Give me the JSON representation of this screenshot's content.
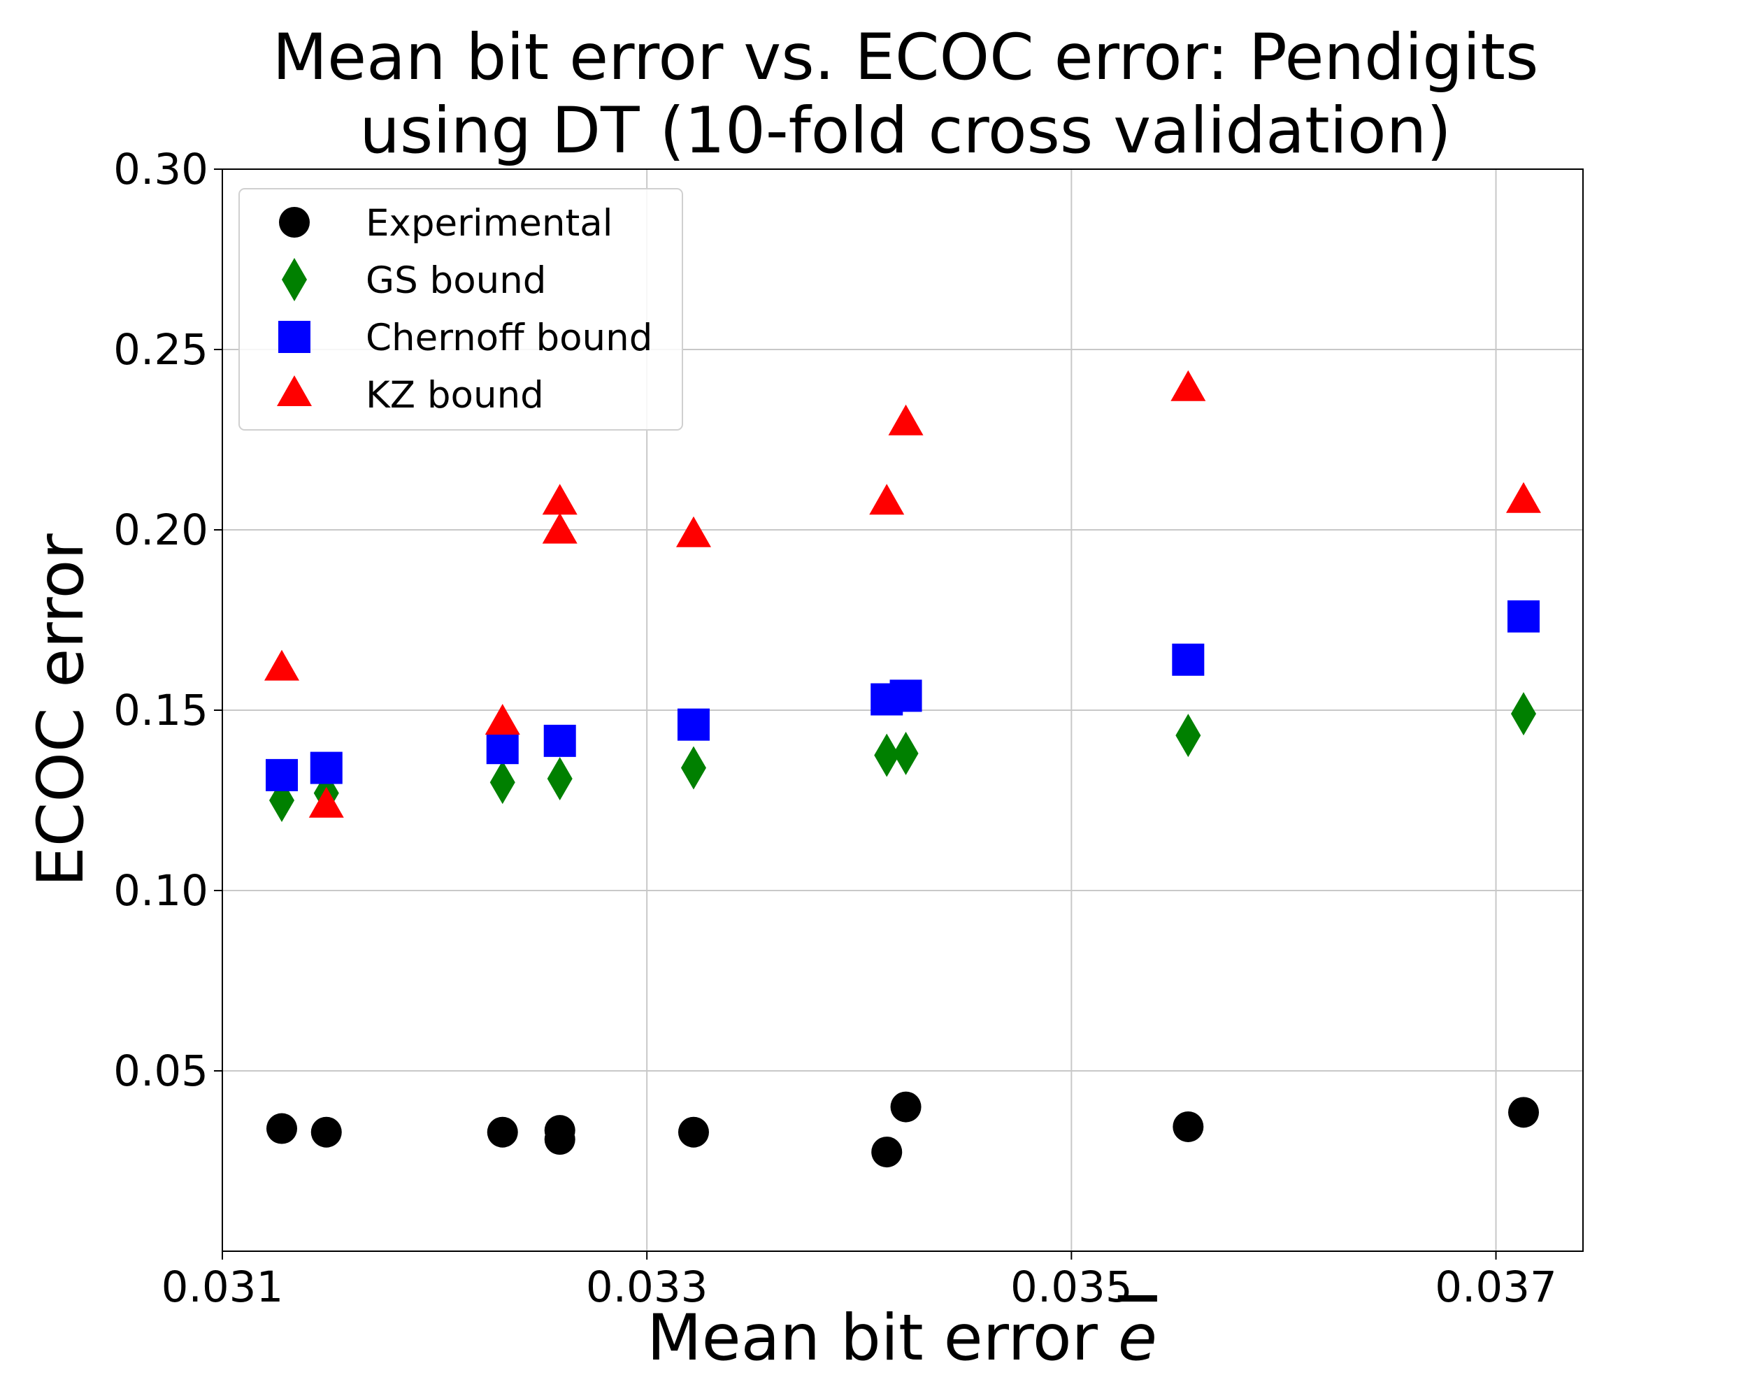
{
  "chart_data": {
    "type": "scatter",
    "title_lines": [
      "Mean bit error vs. ECOC error: Pendigits",
      "using DT (10-fold cross validation)"
    ],
    "xlabel": "Mean bit error ",
    "xlabel_symbol": "e",
    "ylabel": "ECOC error",
    "xlim": [
      0.031,
      0.03741
    ],
    "ylim": [
      0.0,
      0.3
    ],
    "x_ticks": [
      0.031,
      0.033,
      0.035,
      0.037
    ],
    "x_tick_labels": [
      "0.031",
      "0.033",
      "0.035",
      "0.037"
    ],
    "y_ticks": [
      0.05,
      0.1,
      0.15,
      0.2,
      0.25,
      0.3
    ],
    "y_tick_labels": [
      "0.05",
      "0.10",
      "0.15",
      "0.20",
      "0.25",
      "0.30"
    ],
    "grid": true,
    "legend_position": "top-left",
    "series": [
      {
        "name": "Experimental",
        "marker": "circle",
        "color": "#000000",
        "points": [
          [
            0.03128,
            0.034
          ],
          [
            0.03149,
            0.033
          ],
          [
            0.03232,
            0.033
          ],
          [
            0.03259,
            0.0335
          ],
          [
            0.03259,
            0.031
          ],
          [
            0.03322,
            0.033
          ],
          [
            0.03413,
            0.0275
          ],
          [
            0.03422,
            0.04
          ],
          [
            0.03555,
            0.0345
          ],
          [
            0.03713,
            0.0385
          ]
        ]
      },
      {
        "name": "GS bound",
        "marker": "diamond",
        "color": "#008000",
        "points": [
          [
            0.03128,
            0.125
          ],
          [
            0.03149,
            0.127
          ],
          [
            0.03232,
            0.13
          ],
          [
            0.03259,
            0.131
          ],
          [
            0.03322,
            0.134
          ],
          [
            0.03413,
            0.1375
          ],
          [
            0.03422,
            0.138
          ],
          [
            0.03555,
            0.143
          ],
          [
            0.03713,
            0.149
          ]
        ]
      },
      {
        "name": "Chernoff bound",
        "marker": "square",
        "color": "#0000ff",
        "points": [
          [
            0.03128,
            0.132
          ],
          [
            0.03149,
            0.134
          ],
          [
            0.03232,
            0.1395
          ],
          [
            0.03259,
            0.1415
          ],
          [
            0.03322,
            0.146
          ],
          [
            0.03413,
            0.153
          ],
          [
            0.03422,
            0.154
          ],
          [
            0.03555,
            0.164
          ],
          [
            0.03713,
            0.176
          ]
        ]
      },
      {
        "name": "KZ bound",
        "marker": "triangle",
        "color": "#ff0000",
        "points": [
          [
            0.03128,
            0.1615
          ],
          [
            0.03149,
            0.1235
          ],
          [
            0.03232,
            0.1465
          ],
          [
            0.03259,
            0.2075
          ],
          [
            0.03259,
            0.1995
          ],
          [
            0.03322,
            0.1985
          ],
          [
            0.03413,
            0.2075
          ],
          [
            0.03422,
            0.2295
          ],
          [
            0.03555,
            0.239
          ],
          [
            0.03713,
            0.208
          ]
        ]
      }
    ]
  }
}
